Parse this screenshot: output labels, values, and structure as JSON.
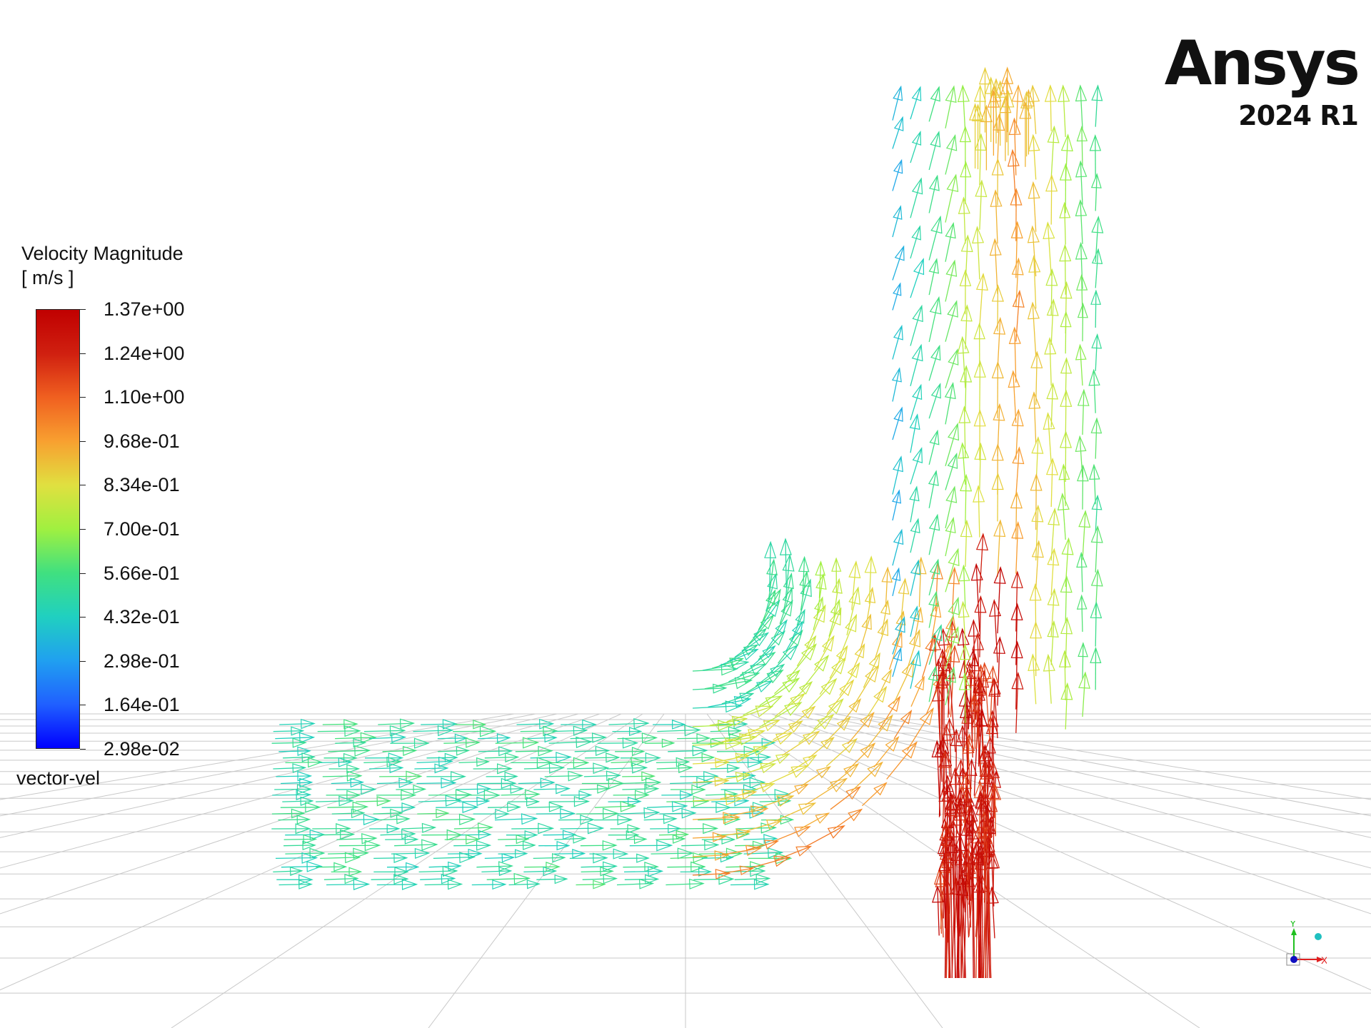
{
  "legend": {
    "title": "Velocity Magnitude",
    "units": "[ m/s ]",
    "ticks": [
      "1.37e+00",
      "1.24e+00",
      "1.10e+00",
      "9.68e-01",
      "8.34e-01",
      "7.00e-01",
      "5.66e-01",
      "4.32e-01",
      "2.98e-01",
      "1.64e-01",
      "2.98e-02"
    ],
    "footer": "vector-vel",
    "max": 1.37,
    "min": 0.0298
  },
  "logo": {
    "brand": "Ansys",
    "version": "2024 R1"
  },
  "triad": {
    "x_label": "X",
    "y_label": "Y",
    "x_color": "#e02020",
    "y_color": "#20c020",
    "z_color": "#1010c0"
  },
  "colors": {
    "background": "#ffffff",
    "grid": "#c8c8c8",
    "colormap": [
      "#0000ff",
      "#2060ff",
      "#20a0f0",
      "#20d0c0",
      "#40e080",
      "#a0f040",
      "#e0e040",
      "#f8a030",
      "#f06020",
      "#d02010",
      "#c00000"
    ]
  }
}
